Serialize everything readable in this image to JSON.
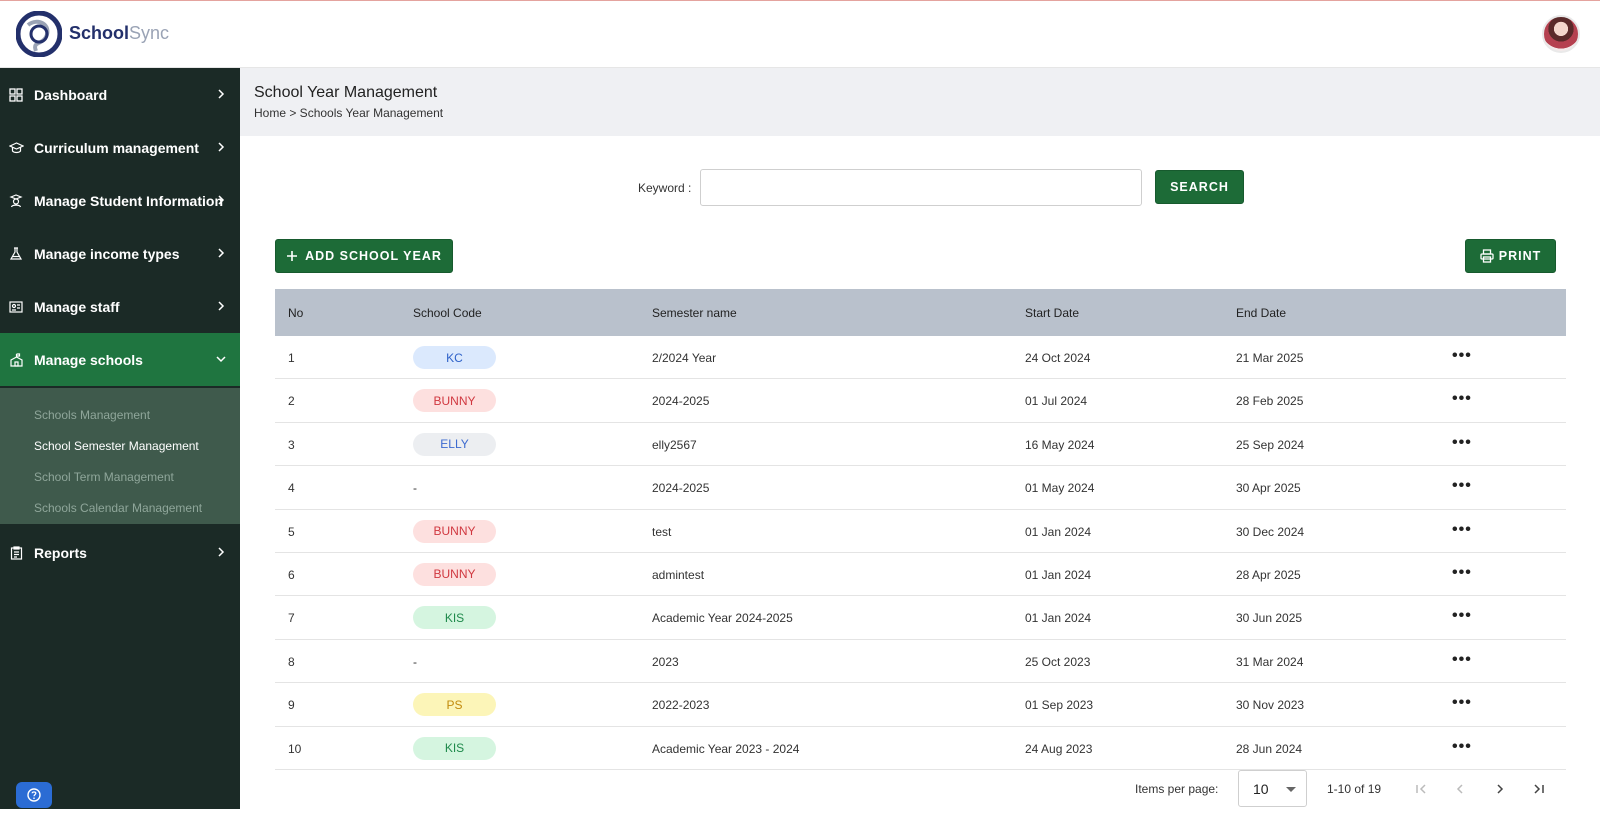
{
  "app": {
    "brand_primary": "School",
    "brand_secondary": "Sync",
    "colors": {
      "sidebar_bg": "#1b2a26",
      "active_nav": "#1f7540",
      "button_green": "#1d6b37"
    }
  },
  "sidebar": {
    "items": [
      {
        "label": "Dashboard",
        "icon": "grid-icon"
      },
      {
        "label": "Curriculum management",
        "icon": "graduation-cap-icon"
      },
      {
        "label": "Manage Student Information",
        "icon": "student-icon"
      },
      {
        "label": "Manage income types",
        "icon": "flask-icon"
      },
      {
        "label": "Manage staff",
        "icon": "id-card-icon"
      },
      {
        "label": "Manage schools",
        "icon": "school-icon",
        "expanded": true
      },
      {
        "label": "Reports",
        "icon": "clipboard-icon"
      }
    ],
    "submenu": [
      {
        "label": "Schools Management"
      },
      {
        "label": "School Semester Management",
        "current": true
      },
      {
        "label": "School Term Management"
      },
      {
        "label": "Schools Calendar Management"
      }
    ]
  },
  "page": {
    "title": "School Year Management",
    "breadcrumb": "Home > Schools Year Management"
  },
  "search": {
    "label": "Keyword :",
    "value": "",
    "placeholder": "",
    "button": "SEARCH"
  },
  "actions": {
    "add_label": "ADD SCHOOL YEAR",
    "print_label": "PRINT"
  },
  "table": {
    "headers": [
      "No",
      "School Code",
      "Semester name",
      "Start Date",
      "End Date"
    ],
    "rows": [
      {
        "no": "1",
        "code": "KC",
        "code_style": "blue",
        "name": "2/2024 Year",
        "start": "24 Oct 2024",
        "end": "21 Mar 2025"
      },
      {
        "no": "2",
        "code": "BUNNY",
        "code_style": "red",
        "name": "2024-2025",
        "start": "01 Jul 2024",
        "end": "28 Feb 2025"
      },
      {
        "no": "3",
        "code": "ELLY",
        "code_style": "gray",
        "name": "elly2567",
        "start": "16 May 2024",
        "end": "25 Sep 2024"
      },
      {
        "no": "4",
        "code": "-",
        "code_style": "none",
        "name": "2024-2025",
        "start": "01 May 2024",
        "end": "30 Apr 2025"
      },
      {
        "no": "5",
        "code": "BUNNY",
        "code_style": "red",
        "name": "test",
        "start": "01 Jan 2024",
        "end": "30 Dec 2024"
      },
      {
        "no": "6",
        "code": "BUNNY",
        "code_style": "red",
        "name": "admintest",
        "start": "01 Jan 2024",
        "end": "28 Apr 2025"
      },
      {
        "no": "7",
        "code": "KIS",
        "code_style": "green",
        "name": "Academic Year 2024-2025",
        "start": "01 Jan 2024",
        "end": "30 Jun 2025"
      },
      {
        "no": "8",
        "code": "-",
        "code_style": "none",
        "name": "2023",
        "start": "25 Oct 2023",
        "end": "31 Mar 2024"
      },
      {
        "no": "9",
        "code": "PS",
        "code_style": "yellow",
        "name": "2022-2023",
        "start": "01 Sep 2023",
        "end": "30 Nov 2023"
      },
      {
        "no": "10",
        "code": "KIS",
        "code_style": "green",
        "name": "Academic Year 2023 - 2024",
        "start": "24 Aug 2023",
        "end": "28 Jun 2024"
      }
    ],
    "row_action_icon": "more-horizontal-icon"
  },
  "pagination": {
    "items_label": "Items per page:",
    "page_size": "10",
    "range": "1-10 of 19"
  }
}
